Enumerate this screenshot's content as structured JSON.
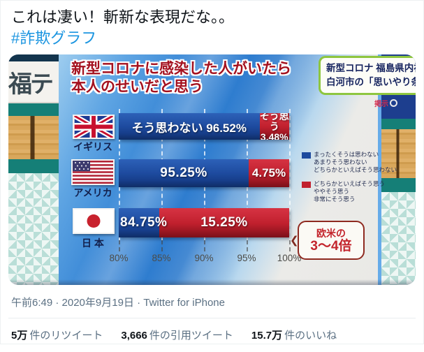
{
  "tweet": {
    "text": "これは凄い！斬新な表現だな。。",
    "hashtag": "#詐欺グラフ",
    "timestamp": "午前6:49 · 2020年9月19日 · Twitter for iPhone",
    "stats": {
      "retweets_count": "5万",
      "retweets_label": "件のリツイート",
      "quotes_count": "3,666",
      "quotes_label": "件の引用ツイート",
      "likes_count": "15.7万",
      "likes_label": "件のいいね"
    }
  },
  "photo": {
    "studio": {
      "left_sign": "福テ"
    },
    "headline_box": {
      "line1": "新型コロナ 福島県内初",
      "line2": "白河市の「思いやり条例」",
      "sub": "掲示"
    },
    "graphic": {
      "title_line1": "新型コロナに感染した人がいたら",
      "title_line2": "本人のせいだと思う",
      "rows": [
        {
          "country": "イギリス",
          "no_label": "そう思わない 96.52%",
          "yes_line1": "そう思う",
          "yes_line2": "3.48%",
          "blue_w": 82.6,
          "red_w": 17.4
        },
        {
          "country": "アメリカ",
          "no_label": "95.25%",
          "yes_label": "4.75%",
          "blue_w": 76.25,
          "red_w": 23.75
        },
        {
          "country": "日 本",
          "no_overlay": "84.75%",
          "yes_label": "15.25%",
          "blue_w": 23.75,
          "red_w": 76.25
        }
      ],
      "axis": {
        "ticks": [
          "80%",
          "85%",
          "90%",
          "95%",
          "100%"
        ]
      },
      "legend": {
        "blue_items": [
          "まったくそうは思わない",
          "あまりそう思わない",
          "どちらかといえばそう思わない"
        ],
        "red_items": [
          "どちらかといえばそう思う",
          "ややそう思う",
          "非常にそう思う"
        ]
      },
      "callout": {
        "line1": "欧米の",
        "line2": "3～4倍",
        "tail": "❮"
      }
    }
  },
  "chart_data": {
    "type": "bar",
    "orientation": "horizontal",
    "title": "新型コロナに感染した人がいたら本人のせいだと思う",
    "categories": [
      "イギリス",
      "アメリカ",
      "日本"
    ],
    "series": [
      {
        "name": "そう思わない",
        "color": "#1d4a9e",
        "values": [
          96.52,
          95.25,
          84.75
        ]
      },
      {
        "name": "そう思う",
        "color": "#c1202e",
        "values": [
          3.48,
          4.75,
          15.25
        ]
      }
    ],
    "xlim": [
      80,
      100
    ],
    "x_ticks": [
      "80%",
      "85%",
      "90%",
      "95%",
      "100%"
    ],
    "grid": "dashed-vertical",
    "legend_position": "right",
    "legend_detail": {
      "そう思わない": [
        "まったくそうは思わない",
        "あまりそう思わない",
        "どちらかといえばそう思わない"
      ],
      "そう思う": [
        "どちらかといえばそう思う",
        "ややそう思う",
        "非常にそう思う"
      ]
    },
    "annotation": "欧米の3～4倍"
  },
  "colors": {
    "bar_blue": "#1d4a9e",
    "bar_red": "#c1202e",
    "title_red": "#a4101e",
    "hashtag_blue": "#1b95e0",
    "headline_border_green": "#8ec63f"
  }
}
